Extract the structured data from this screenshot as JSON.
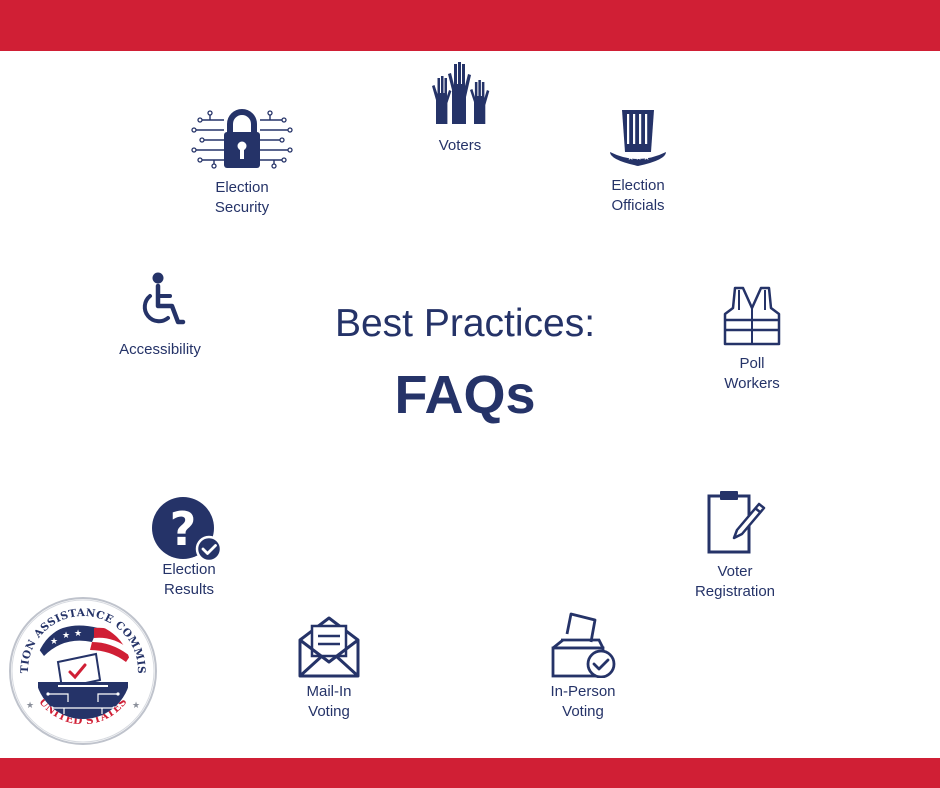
{
  "colors": {
    "accent_red": "#d01f35",
    "navy": "#253368",
    "background": "#ffffff"
  },
  "title": {
    "line1": "Best Practices:",
    "line2": "FAQs"
  },
  "items": [
    {
      "id": "election-security",
      "icon": "padlock-circuit-icon",
      "lines": [
        "Election",
        "Security"
      ]
    },
    {
      "id": "voters",
      "icon": "raised-hands-icon",
      "lines": [
        "Voters"
      ]
    },
    {
      "id": "election-officials",
      "icon": "uncle-sam-hat-icon",
      "lines": [
        "Election",
        "Officials"
      ]
    },
    {
      "id": "accessibility",
      "icon": "wheelchair-icon",
      "lines": [
        "Accessibility"
      ]
    },
    {
      "id": "poll-workers",
      "icon": "safety-vest-icon",
      "lines": [
        "Poll",
        "Workers"
      ]
    },
    {
      "id": "election-results",
      "icon": "question-check-icon",
      "lines": [
        "Election",
        "Results"
      ]
    },
    {
      "id": "voter-registration",
      "icon": "clipboard-pen-icon",
      "lines": [
        "Voter",
        "Registration"
      ]
    },
    {
      "id": "mail-in-voting",
      "icon": "open-envelope-icon",
      "lines": [
        "Mail-In",
        "Voting"
      ]
    },
    {
      "id": "in-person-voting",
      "icon": "ballot-box-check-icon",
      "lines": [
        "In-Person",
        "Voting"
      ]
    }
  ],
  "seal": {
    "top_text": "ELECTION ASSISTANCE COMMISSION",
    "bottom_text": "UNITED STATES"
  }
}
